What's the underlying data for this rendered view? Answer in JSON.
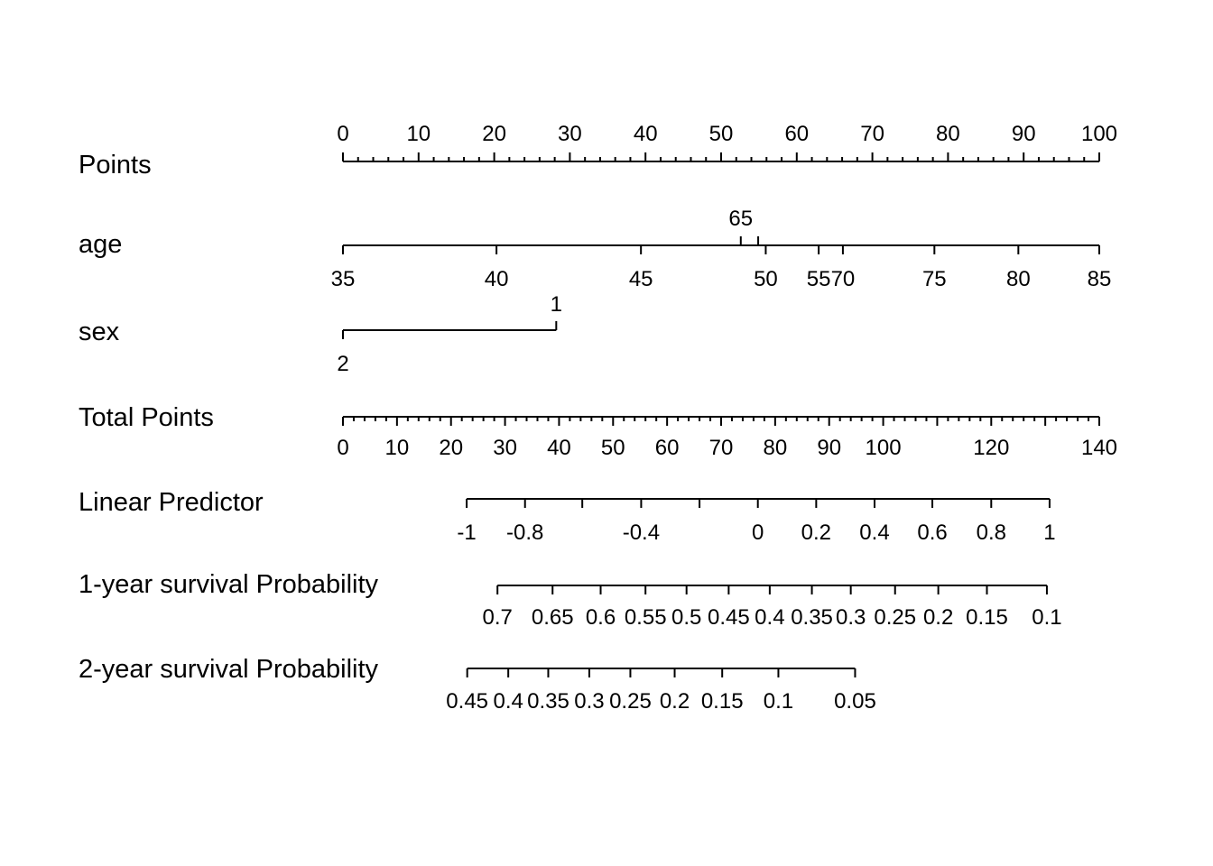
{
  "chart_data": {
    "type": "nomogram",
    "rows": [
      {
        "label": "Points",
        "ticks": [
          {
            "value": 0,
            "label": "0"
          },
          {
            "value": 10,
            "label": "10"
          },
          {
            "value": 20,
            "label": "20"
          },
          {
            "value": 30,
            "label": "30"
          },
          {
            "value": 40,
            "label": "40"
          },
          {
            "value": 50,
            "label": "50"
          },
          {
            "value": 60,
            "label": "60"
          },
          {
            "value": 70,
            "label": "70"
          },
          {
            "value": 80,
            "label": "80"
          },
          {
            "value": 90,
            "label": "90"
          },
          {
            "value": 100,
            "label": "100"
          }
        ],
        "minor_step": 2,
        "range": [
          0,
          100
        ]
      },
      {
        "label": "age",
        "ticks": [
          {
            "value": 35,
            "points": 0,
            "label": "35"
          },
          {
            "value": 40,
            "points": 20.3,
            "label": "40"
          },
          {
            "value": 45,
            "points": 39.4,
            "label": "45"
          },
          {
            "value": 50,
            "points": 55.9,
            "label": "50"
          },
          {
            "value": 55,
            "points": 62.9,
            "label": "55"
          },
          {
            "value": 60,
            "points": 54.9,
            "label": ""
          },
          {
            "value": 65,
            "points": 52.6,
            "label": "65"
          },
          {
            "value": 70,
            "points": 66.1,
            "label": "70"
          },
          {
            "value": 75,
            "points": 78.2,
            "label": "75"
          },
          {
            "value": 80,
            "points": 89.3,
            "label": "80"
          },
          {
            "value": 85,
            "points": 100,
            "label": "85"
          }
        ]
      },
      {
        "label": "sex",
        "ticks": [
          {
            "value": 1,
            "points": 28.2,
            "label": "1"
          },
          {
            "value": 2,
            "points": 0,
            "label": "2"
          }
        ]
      },
      {
        "label": "Total Points",
        "range": [
          0,
          140
        ],
        "minor_step": 2,
        "ticks": [
          {
            "value": 0,
            "label": "0"
          },
          {
            "value": 10,
            "label": "10"
          },
          {
            "value": 20,
            "label": "20"
          },
          {
            "value": 30,
            "label": "30"
          },
          {
            "value": 40,
            "label": "40"
          },
          {
            "value": 50,
            "label": "50"
          },
          {
            "value": 60,
            "label": "60"
          },
          {
            "value": 70,
            "label": "70"
          },
          {
            "value": 80,
            "label": "80"
          },
          {
            "value": 90,
            "label": "90"
          },
          {
            "value": 100,
            "label": "100"
          },
          {
            "value": 110,
            "label": ""
          },
          {
            "value": 120,
            "label": "120"
          },
          {
            "value": 130,
            "label": ""
          },
          {
            "value": 140,
            "label": "140"
          }
        ]
      },
      {
        "label": "Linear Predictor",
        "ticks": [
          {
            "value": -1,
            "total_points": 22.9,
            "label": "-1"
          },
          {
            "value": -0.8,
            "total_points": 33.7,
            "label": "-0.8"
          },
          {
            "value": -0.6,
            "total_points": 44.3,
            "label": ""
          },
          {
            "value": -0.4,
            "total_points": 55.2,
            "label": "-0.4"
          },
          {
            "value": -0.2,
            "total_points": 66.0,
            "label": ""
          },
          {
            "value": 0,
            "total_points": 76.8,
            "label": "0"
          },
          {
            "value": 0.2,
            "total_points": 87.6,
            "label": "0.2"
          },
          {
            "value": 0.4,
            "total_points": 98.4,
            "label": "0.4"
          },
          {
            "value": 0.6,
            "total_points": 109.1,
            "label": "0.6"
          },
          {
            "value": 0.8,
            "total_points": 120.0,
            "label": "0.8"
          },
          {
            "value": 1,
            "total_points": 130.8,
            "label": "1"
          }
        ]
      },
      {
        "label": "1-year survival Probability",
        "ticks": [
          {
            "value": 0.7,
            "total_points": 28.6,
            "label": "0.7"
          },
          {
            "value": 0.65,
            "total_points": 38.8,
            "label": "0.65"
          },
          {
            "value": 0.6,
            "total_points": 47.7,
            "label": "0.6"
          },
          {
            "value": 0.55,
            "total_points": 56.0,
            "label": "0.55"
          },
          {
            "value": 0.5,
            "total_points": 63.6,
            "label": "0.5"
          },
          {
            "value": 0.45,
            "total_points": 71.4,
            "label": "0.45"
          },
          {
            "value": 0.4,
            "total_points": 79.0,
            "label": "0.4"
          },
          {
            "value": 0.35,
            "total_points": 86.8,
            "label": "0.35"
          },
          {
            "value": 0.3,
            "total_points": 94.0,
            "label": "0.3"
          },
          {
            "value": 0.25,
            "total_points": 102.2,
            "label": "0.25"
          },
          {
            "value": 0.2,
            "total_points": 110.2,
            "label": "0.2"
          },
          {
            "value": 0.15,
            "total_points": 119.2,
            "label": "0.15"
          },
          {
            "value": 0.1,
            "total_points": 130.3,
            "label": "0.1"
          }
        ]
      },
      {
        "label": "2-year survival Probability",
        "ticks": [
          {
            "value": 0.45,
            "total_points": 23.0,
            "label": "0.45"
          },
          {
            "value": 0.4,
            "total_points": 30.6,
            "label": "0.4"
          },
          {
            "value": 0.35,
            "total_points": 38.0,
            "label": "0.35"
          },
          {
            "value": 0.3,
            "total_points": 45.6,
            "label": "0.3"
          },
          {
            "value": 0.25,
            "total_points": 53.2,
            "label": "0.25"
          },
          {
            "value": 0.2,
            "total_points": 61.4,
            "label": "0.2"
          },
          {
            "value": 0.15,
            "total_points": 70.2,
            "label": "0.15"
          },
          {
            "value": 0.1,
            "total_points": 80.6,
            "label": "0.1"
          },
          {
            "value": 0.05,
            "total_points": 94.8,
            "label": "0.05"
          }
        ]
      }
    ]
  }
}
